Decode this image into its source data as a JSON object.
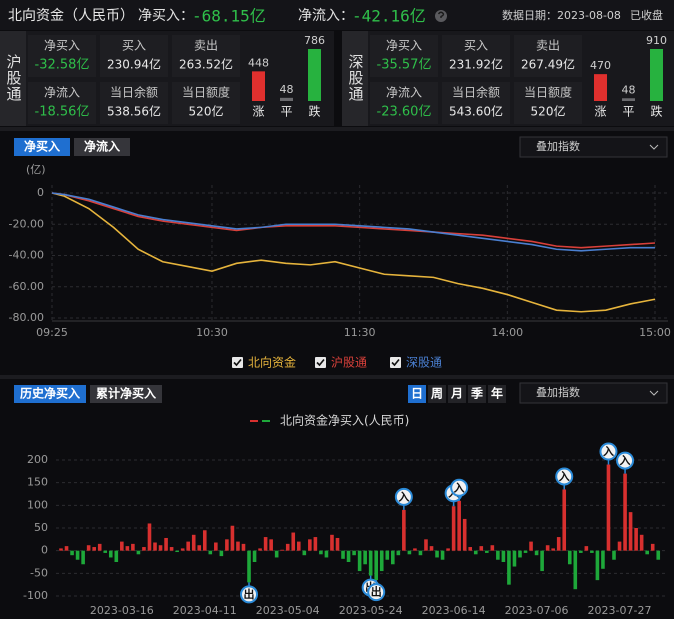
{
  "header": {
    "title": "北向资金（人民币）",
    "net_buy_label": "净买入：",
    "net_buy": "-68.15亿",
    "net_inflow_label": "净流入：",
    "net_inflow": "-42.16亿",
    "date": "数据日期：2023-08-08",
    "status": "已收盘"
  },
  "panels": [
    {
      "name": "沪股通",
      "fields": [
        {
          "label": "净买入",
          "value": "-32.58亿"
        },
        {
          "label": "买入",
          "value": "230.94亿"
        },
        {
          "label": "卖出",
          "value": "263.52亿"
        },
        {
          "label": "净流入",
          "value": "-18.56亿"
        },
        {
          "label": "当日余额",
          "value": "538.56亿"
        },
        {
          "label": "当日额度",
          "value": "520亿"
        }
      ],
      "breadth": [
        {
          "label": "涨",
          "value": 448,
          "color": "#e0302e"
        },
        {
          "label": "平",
          "value": 48,
          "color": "#6a6a6e"
        },
        {
          "label": "跌",
          "value": 786,
          "color": "#27b23f"
        }
      ]
    },
    {
      "name": "深股通",
      "fields": [
        {
          "label": "净买入",
          "value": "-35.57亿"
        },
        {
          "label": "买入",
          "value": "231.92亿"
        },
        {
          "label": "卖出",
          "value": "267.49亿"
        },
        {
          "label": "净流入",
          "value": "-23.60亿"
        },
        {
          "label": "当日余额",
          "value": "543.60亿"
        },
        {
          "label": "当日额度",
          "value": "520亿"
        }
      ],
      "breadth": [
        {
          "label": "涨",
          "value": 470,
          "color": "#e0302e"
        },
        {
          "label": "平",
          "value": 48,
          "color": "#6a6a6e"
        },
        {
          "label": "跌",
          "value": 910,
          "color": "#27b23f"
        }
      ]
    }
  ],
  "intraday_controls": {
    "tabs": [
      "净买入",
      "净流入"
    ],
    "overlay": "叠加指数"
  },
  "history_controls": {
    "tabs": [
      "历史净买入",
      "累计净买入"
    ],
    "periods": [
      "日",
      "周",
      "月",
      "季",
      "年"
    ],
    "overlay": "叠加指数"
  },
  "chart_data": [
    {
      "type": "line",
      "y_unit": "(亿)",
      "x": [
        -5,
        0,
        10,
        20,
        30,
        40,
        50,
        60,
        70,
        80,
        90,
        100,
        110,
        120,
        130,
        140,
        150,
        160,
        170,
        180,
        190,
        200,
        210,
        220,
        230,
        240
      ],
      "xlim": [
        -5,
        240
      ],
      "xticks": [
        {
          "value": -5,
          "label": "09:25"
        },
        {
          "value": 60,
          "label": "10:30"
        },
        {
          "value": 120,
          "label": "11:30"
        },
        {
          "value": 180,
          "label": "14:00"
        },
        {
          "value": 240,
          "label": "15:00"
        }
      ],
      "ylim": [
        -80,
        0
      ],
      "yticks": [
        0,
        {
          "value": -20,
          "label": "-20.00"
        },
        {
          "value": -40,
          "label": "-40.00"
        },
        {
          "value": -60,
          "label": "-60.00"
        },
        {
          "value": -80,
          "label": "-80.00"
        }
      ],
      "grid": true,
      "series": [
        {
          "name": "北向资金",
          "color": "#e6b43c",
          "values": [
            0,
            -2,
            -10,
            -22,
            -36,
            -44,
            -47,
            -50,
            -45,
            -43,
            -45,
            -46,
            -44,
            -48,
            -52,
            -53,
            -54,
            -58,
            -61,
            -65,
            -70,
            -75,
            -76,
            -75,
            -71,
            -68
          ]
        },
        {
          "name": "沪股通",
          "color": "#d8403a",
          "values": [
            0,
            -1,
            -5,
            -10,
            -15,
            -18,
            -20,
            -22,
            -24,
            -22,
            -21,
            -21,
            -21,
            -22,
            -23,
            -24,
            -25,
            -26,
            -27,
            -29,
            -31,
            -34,
            -35,
            -34,
            -33,
            -32
          ]
        },
        {
          "name": "深股通",
          "color": "#4a7fd0",
          "values": [
            0,
            -1,
            -4,
            -9,
            -14,
            -17,
            -19,
            -21,
            -23,
            -22,
            -20,
            -20,
            -20,
            -21,
            -22,
            -23,
            -25,
            -27,
            -29,
            -31,
            -33,
            -36,
            -37,
            -36,
            -35,
            -35
          ]
        }
      ]
    },
    {
      "type": "bar",
      "title": "北向资金净买入(人民币)",
      "colors": {
        "positive": "#d8302f",
        "negative": "#1ea83a"
      },
      "categories": [
        null,
        null,
        null,
        null,
        null,
        null,
        null,
        null,
        null,
        null,
        null,
        "2023-03-16",
        null,
        null,
        null,
        null,
        null,
        null,
        null,
        null,
        null,
        null,
        null,
        null,
        null,
        null,
        "2023-04-11",
        null,
        null,
        null,
        null,
        null,
        null,
        null,
        null,
        null,
        null,
        null,
        null,
        null,
        null,
        "2023-05-04",
        null,
        null,
        null,
        null,
        null,
        null,
        null,
        null,
        null,
        null,
        null,
        null,
        null,
        null,
        "2023-05-24",
        null,
        null,
        null,
        null,
        null,
        null,
        null,
        null,
        null,
        null,
        null,
        null,
        null,
        null,
        "2023-06-14",
        null,
        null,
        null,
        null,
        null,
        null,
        null,
        null,
        null,
        null,
        null,
        null,
        null,
        null,
        "2023-07-06",
        null,
        null,
        null,
        null,
        null,
        null,
        null,
        null,
        null,
        null,
        null,
        null,
        null,
        null,
        "2023-07-27",
        null,
        null,
        null,
        null,
        null,
        null,
        null
      ],
      "values": [
        5,
        10,
        -10,
        -20,
        -30,
        12,
        8,
        15,
        -5,
        -15,
        -25,
        20,
        10,
        15,
        -8,
        8,
        60,
        18,
        12,
        28,
        8,
        -3,
        5,
        20,
        35,
        12,
        45,
        -8,
        18,
        -12,
        25,
        55,
        20,
        15,
        -70,
        -25,
        5,
        30,
        25,
        -15,
        2,
        15,
        40,
        20,
        -10,
        25,
        30,
        -8,
        -15,
        35,
        28,
        -18,
        -25,
        -10,
        -45,
        -30,
        -55,
        -65,
        -45,
        -20,
        -30,
        -10,
        90,
        -8,
        5,
        -10,
        25,
        10,
        -15,
        -20,
        5,
        98,
        110,
        70,
        8,
        -8,
        10,
        -5,
        12,
        -20,
        -25,
        -75,
        -35,
        -15,
        -5,
        20,
        -10,
        -45,
        12,
        5,
        30,
        135,
        -30,
        -85,
        -5,
        10,
        -5,
        -65,
        -40,
        190,
        -20,
        20,
        170,
        85,
        50,
        35,
        -8,
        15,
        -20
      ],
      "flags": [
        null,
        null,
        null,
        null,
        null,
        null,
        null,
        null,
        null,
        null,
        null,
        null,
        null,
        null,
        null,
        null,
        null,
        null,
        null,
        null,
        null,
        null,
        null,
        null,
        null,
        null,
        null,
        null,
        null,
        null,
        null,
        null,
        null,
        null,
        "出",
        null,
        null,
        null,
        null,
        null,
        null,
        null,
        null,
        null,
        null,
        null,
        null,
        null,
        null,
        null,
        null,
        null,
        null,
        null,
        null,
        null,
        "出",
        "出",
        null,
        null,
        null,
        null,
        "入",
        null,
        null,
        null,
        null,
        null,
        null,
        null,
        null,
        "入",
        "入",
        null,
        null,
        null,
        null,
        null,
        null,
        null,
        null,
        null,
        null,
        null,
        null,
        null,
        null,
        null,
        null,
        null,
        null,
        "入",
        null,
        null,
        null,
        null,
        null,
        null,
        null,
        "入",
        null,
        null,
        "入",
        null,
        null,
        null,
        null,
        null,
        null
      ],
      "ylim": [
        -100,
        200
      ],
      "yticks": [
        200,
        150,
        100,
        50,
        0,
        -50,
        -100
      ],
      "grid": true
    }
  ]
}
